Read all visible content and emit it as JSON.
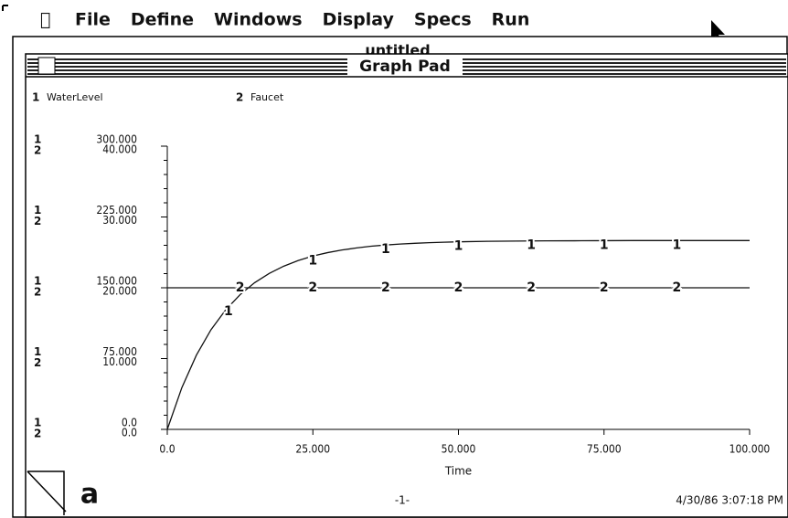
{
  "menu": [
    "File",
    "Define",
    "Windows",
    "Display",
    "Specs",
    "Run"
  ],
  "window": {
    "behind_title": "untitled",
    "title": "Graph Pad"
  },
  "footer": {
    "page": "-1-",
    "timestamp": "4/30/86 3:07:18 PM"
  },
  "chart_data": {
    "type": "line",
    "x_label": "Time",
    "xlim": [
      0,
      100
    ],
    "xticks": [
      {
        "value": 0,
        "label": "0.0"
      },
      {
        "value": 25,
        "label": "25.000"
      },
      {
        "value": 50,
        "label": "50.000"
      },
      {
        "value": 75,
        "label": "75.000"
      },
      {
        "value": 100,
        "label": "100.000"
      }
    ],
    "ylim": [
      0,
      300
    ],
    "yticks": [
      {
        "value": 0,
        "label": "0.0"
      },
      {
        "value": 75,
        "label": "75.000"
      },
      {
        "value": 150,
        "label": "150.000"
      },
      {
        "value": 225,
        "label": "225.000"
      },
      {
        "value": 300,
        "label": "300.000"
      }
    ],
    "y2lim": [
      0,
      40
    ],
    "y2ticks": [
      {
        "value": 0,
        "label": "0.0"
      },
      {
        "value": 10,
        "label": "10.000"
      },
      {
        "value": 20,
        "label": "20.000"
      },
      {
        "value": 30,
        "label": "30.000"
      },
      {
        "value": 40,
        "label": "40.000"
      }
    ],
    "series": [
      {
        "name": "WaterLevel",
        "marker": "1",
        "color": "#111",
        "x": [
          0,
          2.5,
          5,
          7.5,
          10,
          12.5,
          15,
          17.5,
          20,
          22.5,
          25,
          27.5,
          30,
          32.5,
          35,
          37.5,
          40,
          42.5,
          45,
          47.5,
          50,
          55,
          60,
          65,
          70,
          75,
          80,
          85,
          90,
          95,
          100
        ],
        "values": [
          0,
          44.2,
          78.7,
          105.5,
          126.4,
          142.7,
          155.4,
          165.2,
          172.9,
          178.9,
          183.6,
          187.2,
          190.0,
          192.2,
          194.0,
          195.3,
          196.3,
          197.1,
          197.8,
          198.3,
          198.7,
          199.2,
          199.5,
          199.7,
          199.8,
          199.9,
          200,
          200,
          200,
          200,
          200
        ]
      },
      {
        "name": "Faucet",
        "marker": "2",
        "color": "#111",
        "axis": "y2",
        "x": [
          0,
          100
        ],
        "values": [
          20,
          20
        ]
      }
    ]
  }
}
